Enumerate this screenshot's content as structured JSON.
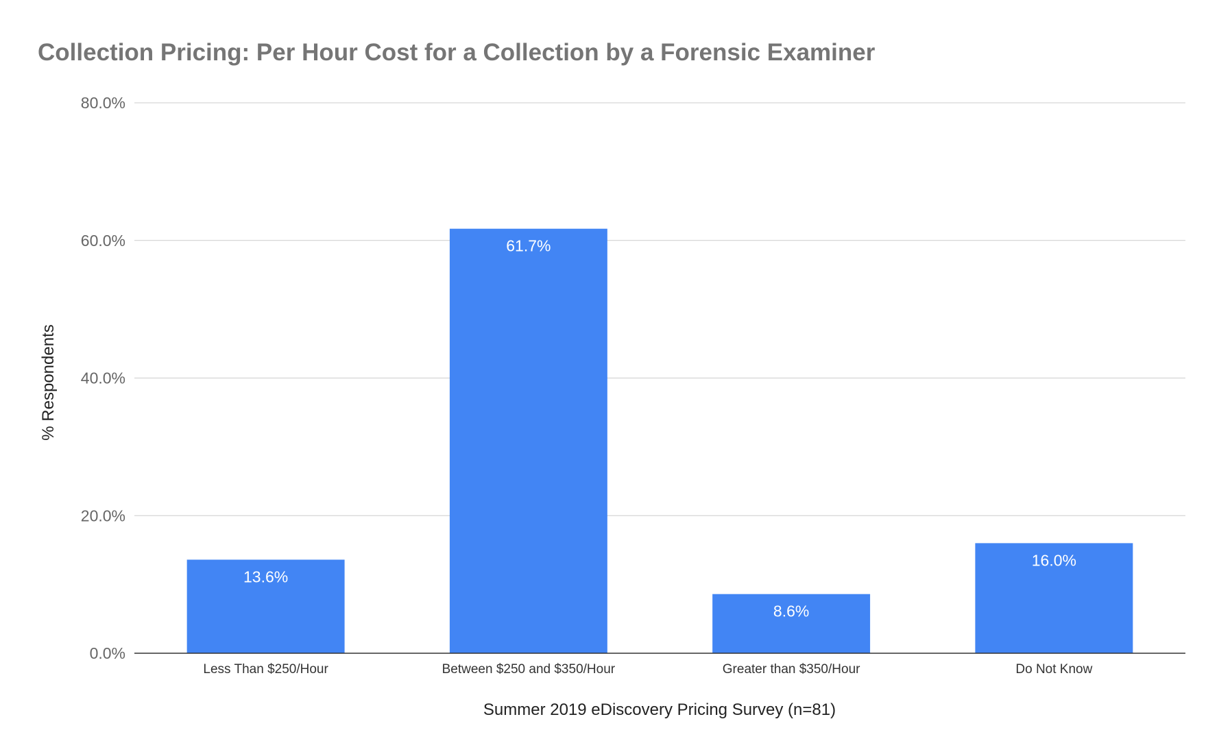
{
  "chart_data": {
    "type": "bar",
    "title": "Collection Pricing: Per Hour Cost for a Collection by a Forensic Examiner",
    "xlabel": "Summer 2019 eDiscovery Pricing Survey (n=81)",
    "ylabel": "% Respondents",
    "categories": [
      "Less Than $250/Hour",
      "Between $250 and $350/Hour",
      "Greater than $350/Hour",
      "Do Not Know"
    ],
    "values": [
      13.6,
      61.7,
      8.6,
      16.0
    ],
    "data_labels": [
      "13.6%",
      "61.7%",
      "8.6%",
      "16.0%"
    ],
    "ylim": [
      0,
      80
    ],
    "yticks": [
      0,
      20,
      40,
      60,
      80
    ],
    "ytick_labels": [
      "0.0%",
      "20.0%",
      "40.0%",
      "60.0%",
      "80.0%"
    ],
    "grid": true,
    "legend": "none",
    "bar_color": "#4285f4"
  }
}
